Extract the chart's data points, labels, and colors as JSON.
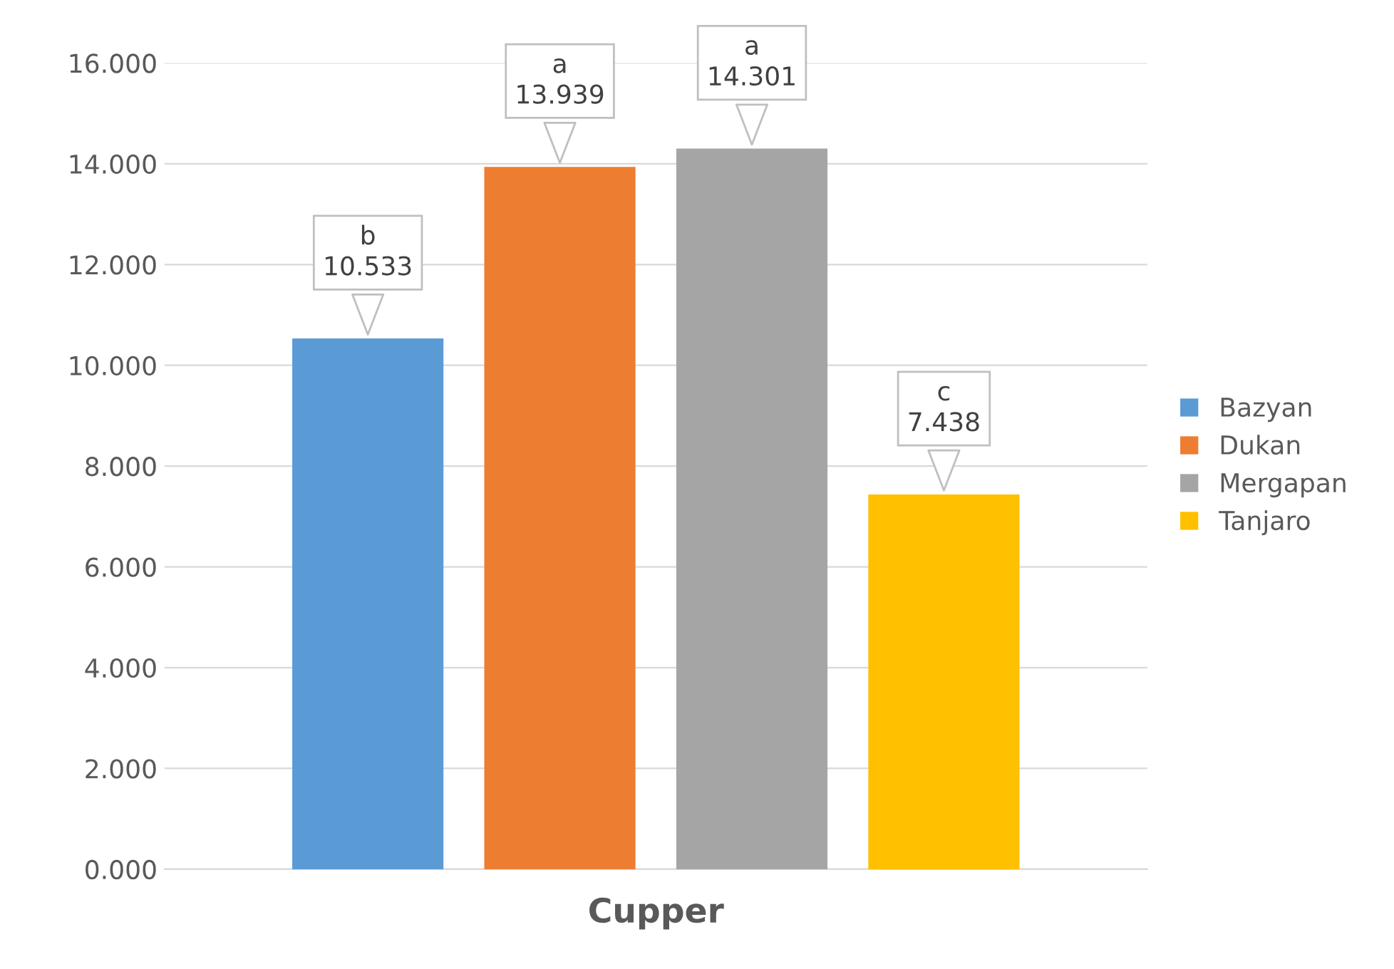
{
  "chart_data": {
    "type": "bar",
    "categories": [
      "Cupper"
    ],
    "series": [
      {
        "name": "Bazyan",
        "color": "#5b9bd5",
        "values": [
          10.533
        ],
        "value_labels": [
          "b\n10.533"
        ]
      },
      {
        "name": "Dukan",
        "color": "#ed7d31",
        "values": [
          13.939
        ],
        "value_labels": [
          "a\n13.939"
        ]
      },
      {
        "name": "Mergapan",
        "color": "#a5a5a5",
        "values": [
          14.301
        ],
        "value_labels": [
          "a\n14.301"
        ]
      },
      {
        "name": "Tanjaro",
        "color": "#ffc000",
        "values": [
          7.438
        ],
        "value_labels": [
          "c\n7.438"
        ]
      }
    ],
    "ylim": [
      0,
      16
    ],
    "yticks": [
      {
        "value": 0,
        "label": "0.000"
      },
      {
        "value": 2,
        "label": "2.000"
      },
      {
        "value": 4,
        "label": "4.000"
      },
      {
        "value": 6,
        "label": "6.000"
      },
      {
        "value": 8,
        "label": "8.000"
      },
      {
        "value": 10,
        "label": "10.000"
      },
      {
        "value": 12,
        "label": "12.000"
      },
      {
        "value": 14,
        "label": "14.000"
      },
      {
        "value": 16,
        "label": "16.000"
      }
    ],
    "grid": "y",
    "legend": "right"
  }
}
